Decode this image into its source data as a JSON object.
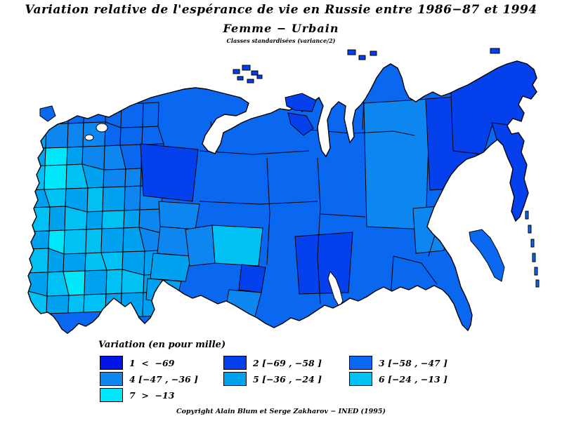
{
  "header": {
    "title": "Variation relative de l'espérance de vie en Russie entre 1986−87 et 1994",
    "subtitle": "Femme  −  Urbain",
    "note": "Classes standardisées (variance/2)"
  },
  "legend": {
    "heading": "Variation (en pour mille)",
    "classes": [
      {
        "id": 1,
        "label": "1  <  −69",
        "color": "#0014E6"
      },
      {
        "id": 2,
        "label": "2 [−69 , −58 ]",
        "color": "#0441EC"
      },
      {
        "id": 3,
        "label": "3 [−58 , −47 ]",
        "color": "#0A68F0"
      },
      {
        "id": 4,
        "label": "4 [−47 , −36 ]",
        "color": "#0D86F0"
      },
      {
        "id": 5,
        "label": "5 [−36 , −24 ]",
        "color": "#00A2F0"
      },
      {
        "id": 6,
        "label": "6 [−24 , −13 ]",
        "color": "#00C0F4"
      },
      {
        "id": 7,
        "label": "7  >  −13",
        "color": "#00E6FA"
      }
    ],
    "columns": [
      [
        1,
        4,
        7
      ],
      [
        2,
        5
      ],
      [
        3,
        6
      ]
    ]
  },
  "map": {
    "name": "Russie — carte choroplèthe par régions",
    "west_mosaic_classes": [
      [
        4,
        4,
        3,
        3,
        3,
        3,
        3
      ],
      [
        5,
        4,
        4,
        4,
        3,
        3,
        3
      ],
      [
        5,
        7,
        5,
        4,
        4,
        3,
        3
      ],
      [
        6,
        7,
        6,
        5,
        4,
        4,
        3
      ],
      [
        5,
        6,
        5,
        6,
        5,
        4,
        4
      ],
      [
        6,
        5,
        6,
        5,
        6,
        5,
        4
      ],
      [
        5,
        7,
        6,
        6,
        5,
        5,
        4
      ],
      [
        6,
        5,
        5,
        6,
        6,
        5,
        5
      ],
      [
        5,
        6,
        7,
        5,
        6,
        6,
        5
      ],
      [
        6,
        5,
        6,
        6,
        5,
        5,
        5
      ]
    ]
  },
  "footer": {
    "copyright": "Copyright Alain Blum et Serge Zakharov  −  INED (1995)"
  }
}
